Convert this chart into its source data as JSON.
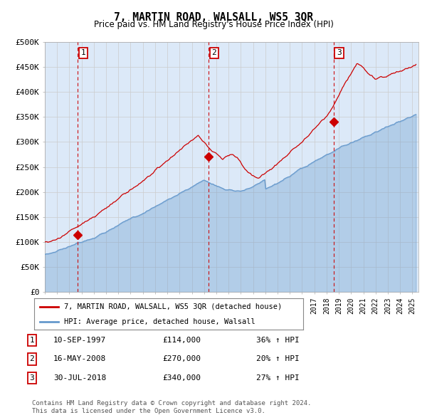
{
  "title": "7, MARTIN ROAD, WALSALL, WS5 3QR",
  "subtitle": "Price paid vs. HM Land Registry's House Price Index (HPI)",
  "legend_label_red": "7, MARTIN ROAD, WALSALL, WS5 3QR (detached house)",
  "legend_label_blue": "HPI: Average price, detached house, Walsall",
  "transactions": [
    {
      "label": "1",
      "date": "10-SEP-1997",
      "price": 114000,
      "pct": "36% ↑ HPI",
      "year_x": 1997.69
    },
    {
      "label": "2",
      "date": "16-MAY-2008",
      "price": 270000,
      "pct": "20% ↑ HPI",
      "year_x": 2008.37
    },
    {
      "label": "3",
      "date": "30-JUL-2018",
      "price": 340000,
      "pct": "27% ↑ HPI",
      "year_x": 2018.58
    }
  ],
  "footer": "Contains HM Land Registry data © Crown copyright and database right 2024.\nThis data is licensed under the Open Government Licence v3.0.",
  "ylim": [
    0,
    500000
  ],
  "xlim_start": 1995.0,
  "xlim_end": 2025.5,
  "bg_color": "#dce9f8",
  "red_color": "#cc0000",
  "blue_color": "#6699cc",
  "grid_color": "#cccccc",
  "yticks": [
    0,
    50000,
    100000,
    150000,
    200000,
    250000,
    300000,
    350000,
    400000,
    450000,
    500000
  ],
  "ytick_labels": [
    "£0",
    "£50K",
    "£100K",
    "£150K",
    "£200K",
    "£250K",
    "£300K",
    "£350K",
    "£400K",
    "£450K",
    "£500K"
  ]
}
